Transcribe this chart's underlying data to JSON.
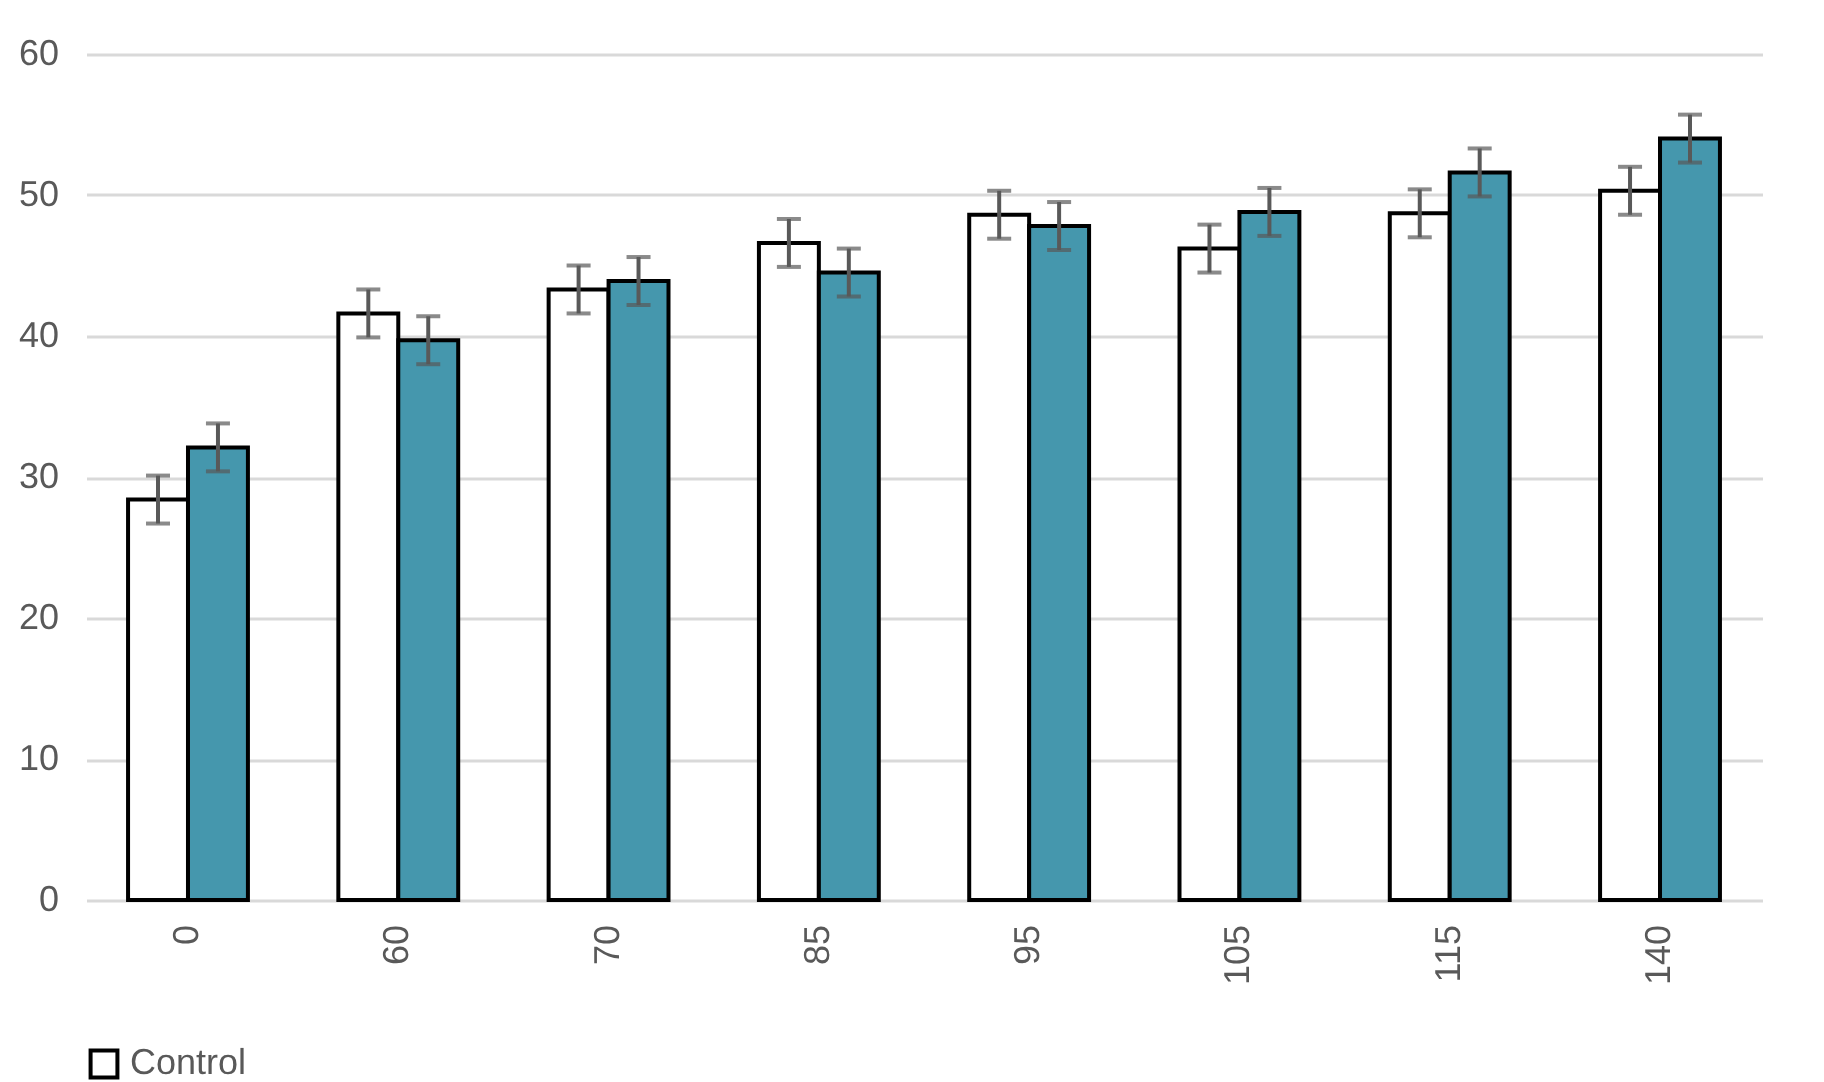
{
  "chart_data": {
    "type": "bar",
    "categories": [
      "0",
      "60",
      "70",
      "85",
      "95",
      "105",
      "115",
      "140"
    ],
    "series": [
      {
        "name": "Control",
        "color": "#ffffff",
        "values": [
          28.4,
          41.6,
          43.3,
          46.6,
          48.6,
          46.2,
          48.7,
          50.3
        ],
        "errors": [
          1.7,
          1.7,
          1.7,
          1.7,
          1.7,
          1.7,
          1.7,
          1.7
        ]
      },
      {
        "color": "#4597ad",
        "values": [
          32.1,
          39.7,
          43.9,
          44.5,
          47.8,
          48.8,
          51.6,
          54.0
        ],
        "errors": [
          1.7,
          1.7,
          1.7,
          1.7,
          1.7,
          1.7,
          1.7,
          1.7
        ]
      }
    ],
    "ylim": [
      0,
      60
    ],
    "yticks": [
      0,
      10,
      20,
      30,
      40,
      50,
      60
    ],
    "grid": "y",
    "legend": "bottom"
  }
}
